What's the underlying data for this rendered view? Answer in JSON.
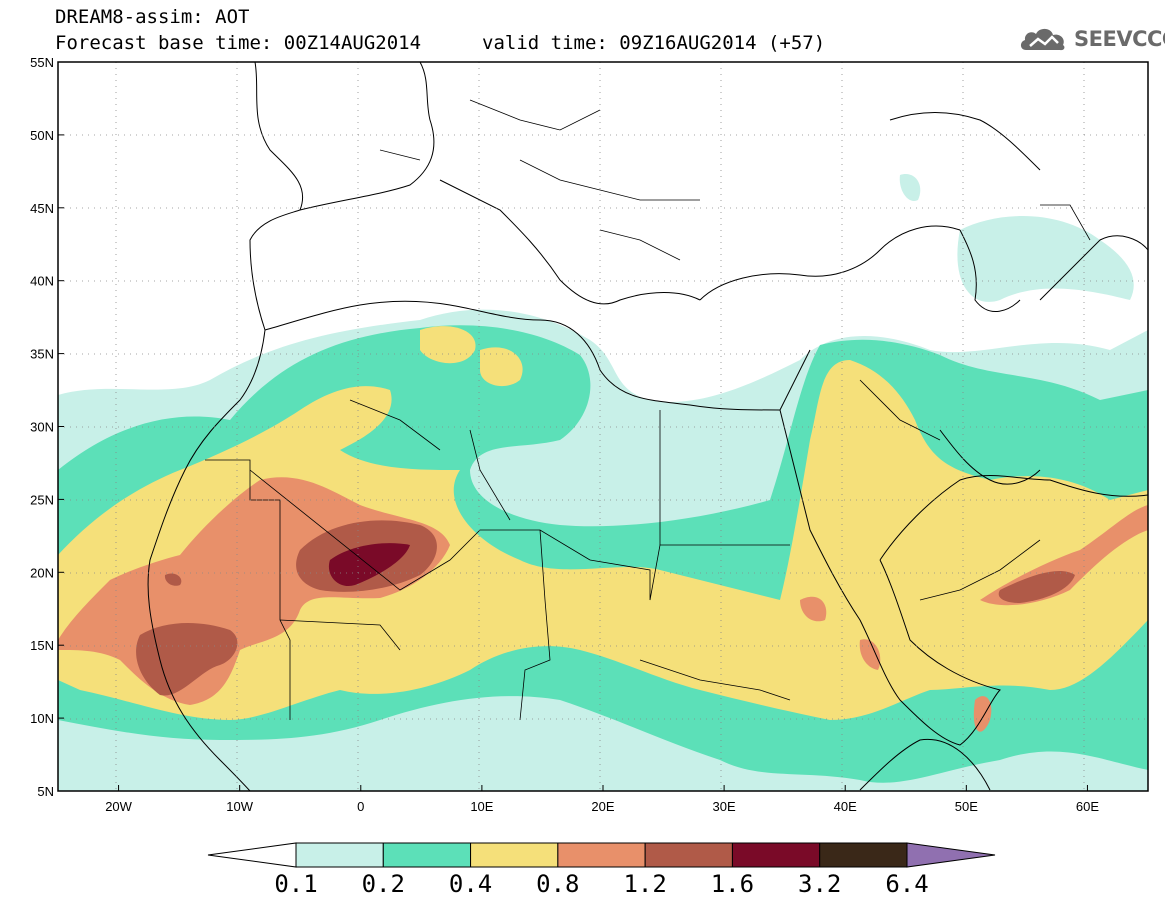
{
  "title_line1": "DREAM8-assim: AOT",
  "title_line2": "Forecast base time: 00Z14AUG2014",
  "title_line2b": "valid time: 09Z16AUG2014 (+57)",
  "logo_text": "SEEVCCC",
  "logo_icon": "cloud-icon",
  "map": {
    "lat_labels": [
      "55N",
      "50N",
      "45N",
      "40N",
      "35N",
      "30N",
      "25N",
      "20N",
      "15N",
      "10N",
      "5N"
    ],
    "lon_labels": [
      "20W",
      "10W",
      "0",
      "10E",
      "20E",
      "30E",
      "40E",
      "50E",
      "60E"
    ],
    "lon_range": [
      -25,
      65
    ],
    "lat_range": [
      5,
      55
    ]
  },
  "colorbar": {
    "labels": [
      "0.1",
      "0.2",
      "0.4",
      "0.8",
      "1.2",
      "1.6",
      "3.2",
      "6.4"
    ],
    "colors": [
      "#ffffff",
      "#c8f0e8",
      "#5ce0b8",
      "#f5e07a",
      "#e8906a",
      "#b05a48",
      "#7a0a28",
      "#3a2818",
      "#9070b0"
    ]
  }
}
